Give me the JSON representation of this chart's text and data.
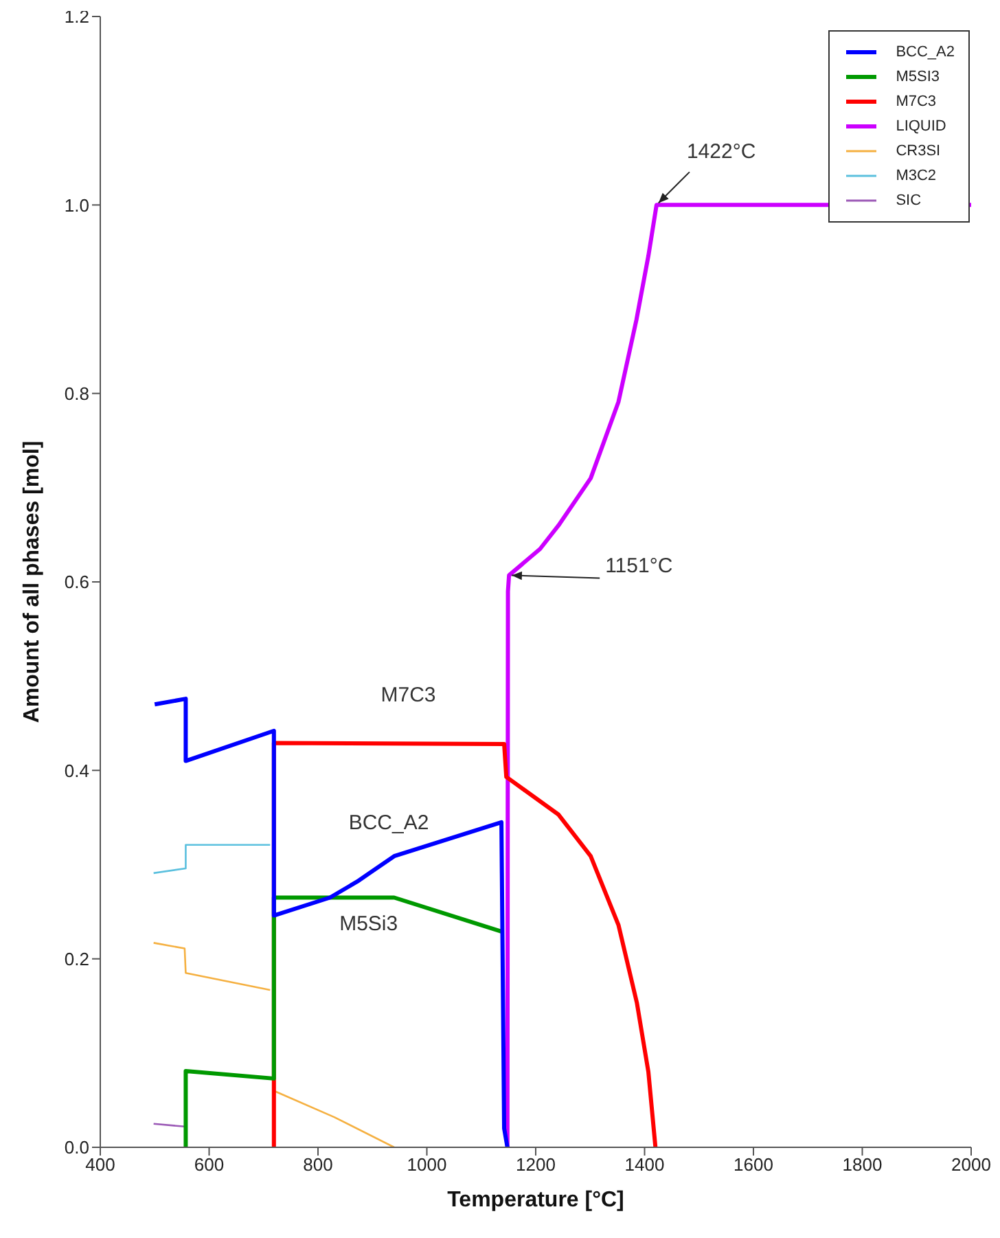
{
  "chart_data": {
    "type": "line",
    "xlabel": "Temperature [°C]",
    "ylabel": "Amount of all phases [mol]",
    "xlim": [
      400,
      2000
    ],
    "xticks": [
      400,
      600,
      800,
      1000,
      1200,
      1400,
      1600,
      1800,
      2000
    ],
    "ylim": [
      0,
      1.2
    ],
    "yticks": [
      {
        "value": 0,
        "label": "0.0"
      },
      {
        "value": 0.2,
        "label": "0.2"
      },
      {
        "value": 0.4,
        "label": "0.4"
      },
      {
        "value": 0.6,
        "label": "0.6"
      },
      {
        "value": 0.8,
        "label": "0.8"
      },
      {
        "value": 1,
        "label": "1.0"
      },
      {
        "value": 1.2,
        "label": "1.2"
      }
    ],
    "legend": "top right",
    "marker": "none",
    "series": [
      {
        "name": "BCC_A2",
        "color": "#0000ff",
        "x": [
          500,
          557,
          557,
          719,
          719,
          822,
          872,
          940,
          1137,
          1142,
          1148
        ],
        "values": [
          0.47,
          0.476,
          0.41,
          0.442,
          0.246,
          0.265,
          0.282,
          0.309,
          0.345,
          0.02,
          0
        ]
      },
      {
        "name": "M5SI3",
        "color": "#009900",
        "x": [
          557,
          557,
          719,
          719,
          940,
          1137
        ],
        "values": [
          0,
          0.081,
          0.073,
          0.265,
          0.265,
          0.229
        ]
      },
      {
        "name": "M7C3",
        "color": "#ff0000",
        "x": [
          719,
          719,
          1142,
          1146,
          1242,
          1301,
          1352,
          1386,
          1407,
          1420
        ],
        "values": [
          0,
          0.429,
          0.428,
          0.393,
          0.353,
          0.309,
          0.236,
          0.153,
          0.08,
          0
        ]
      },
      {
        "name": "LIQUID",
        "color": "#cc00ff",
        "x": [
          1148,
          1149,
          1151,
          1208,
          1242,
          1301,
          1352,
          1385,
          1407,
          1422,
          2000
        ],
        "values": [
          0,
          0.59,
          0.607,
          0.635,
          0.66,
          0.71,
          0.791,
          0.878,
          0.946,
          1,
          1
        ]
      },
      {
        "name": "CR3SI",
        "color": "#f5b041",
        "x": [
          498,
          555,
          557,
          712,
          716,
          719,
          830,
          940
        ],
        "values": [
          0.217,
          0.211,
          0.185,
          0.167,
          null,
          0.06,
          0.032,
          0
        ]
      },
      {
        "name": "M3C2",
        "color": "#5bc0de",
        "x": [
          498,
          557,
          557,
          712
        ],
        "values": [
          0.291,
          0.296,
          0.321,
          0.321
        ]
      },
      {
        "name": "SIC",
        "color": "#9b59b6",
        "x": [
          498,
          555
        ],
        "values": [
          0.025,
          0.022
        ]
      }
    ],
    "annotations": [
      "M7C3",
      "BCC_A2",
      "M5Si3",
      {
        "text": "1151°C",
        "x": 1151,
        "y": 0.607
      },
      {
        "text": "1422°C",
        "x": 1422,
        "y": 1
      }
    ]
  }
}
